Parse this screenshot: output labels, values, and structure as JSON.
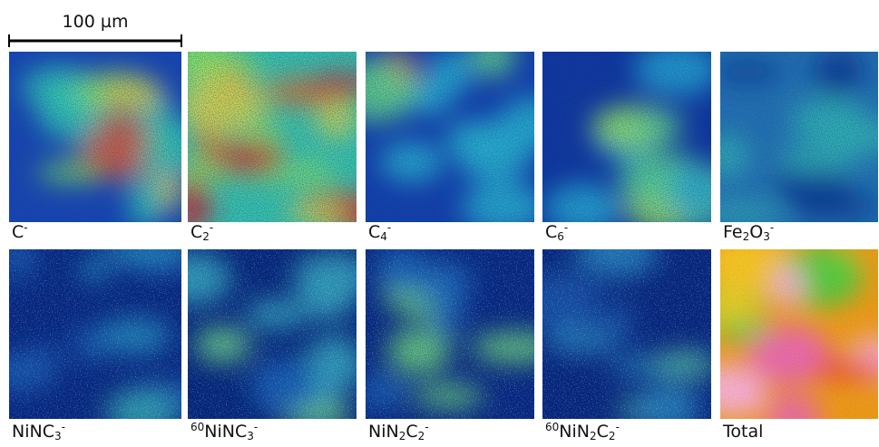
{
  "scale_bar": "100 µm",
  "panels": [
    {
      "label": [
        {
          "text": "C"
        },
        {
          "sup": "-"
        }
      ]
    },
    {
      "label": [
        {
          "text": "C"
        },
        {
          "sub": "2"
        },
        {
          "sup": "-"
        }
      ]
    },
    {
      "label": [
        {
          "text": "C"
        },
        {
          "sub": "4"
        },
        {
          "sup": "-"
        }
      ]
    },
    {
      "label": [
        {
          "text": "C"
        },
        {
          "sub": "6"
        },
        {
          "sup": "-"
        }
      ]
    },
    {
      "label": [
        {
          "text": "Fe"
        },
        {
          "sub": "2"
        },
        {
          "text": "O"
        },
        {
          "sub": "3"
        },
        {
          "sup": "-"
        }
      ]
    },
    {
      "label": [
        {
          "text": "NiNC"
        },
        {
          "sub": "3"
        },
        {
          "sup": "-"
        }
      ]
    },
    {
      "label": [
        {
          "sup": "60"
        },
        {
          "text": "NiNC"
        },
        {
          "sub": "3"
        },
        {
          "sup": "-"
        }
      ]
    },
    {
      "label": [
        {
          "text": "NiN"
        },
        {
          "sub": "2"
        },
        {
          "text": "C"
        },
        {
          "sub": "2"
        },
        {
          "sup": "-"
        }
      ]
    },
    {
      "label": [
        {
          "sup": "60"
        },
        {
          "text": "NiN"
        },
        {
          "sub": "2"
        },
        {
          "text": "C"
        },
        {
          "sub": "2"
        },
        {
          "sup": "-"
        }
      ]
    },
    {
      "label": [
        {
          "text": "Total"
        }
      ]
    }
  ]
}
